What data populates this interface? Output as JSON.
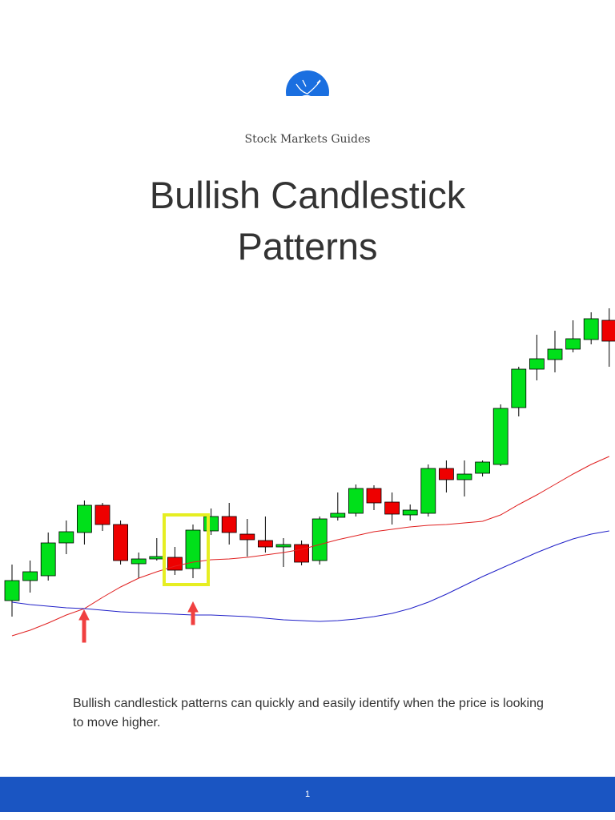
{
  "header": {
    "brand": "Stock Markets Guides",
    "title": "Bullish Candlestick Patterns"
  },
  "chart_data": {
    "type": "candlestick",
    "ylim": [
      0,
      420
    ],
    "up_color": "#00e01a",
    "down_color": "#ee0000",
    "candles": {
      "open": [
        50,
        75,
        81,
        122,
        135,
        169,
        145,
        96,
        102,
        104,
        90,
        137,
        155,
        133,
        125,
        117,
        120,
        100,
        154,
        159,
        190,
        173,
        157,
        159,
        215,
        201,
        209,
        220,
        291,
        339,
        351,
        364,
        376,
        400
      ],
      "high": [
        95,
        100,
        135,
        150,
        175,
        172,
        150,
        110,
        128,
        117,
        145,
        165,
        172,
        152,
        155,
        128,
        125,
        155,
        185,
        195,
        194,
        185,
        170,
        220,
        225,
        225,
        225,
        295,
        342,
        382,
        387,
        400,
        410,
        415
      ],
      "low": [
        30,
        60,
        75,
        108,
        120,
        137,
        95,
        78,
        100,
        82,
        78,
        132,
        120,
        105,
        110,
        92,
        94,
        95,
        150,
        155,
        163,
        145,
        150,
        155,
        185,
        180,
        205,
        218,
        280,
        325,
        335,
        360,
        370,
        342
      ],
      "close": [
        75,
        86,
        122,
        136,
        169,
        145,
        100,
        102,
        105,
        88,
        138,
        155,
        135,
        126,
        117,
        120,
        98,
        152,
        159,
        190,
        172,
        158,
        163,
        215,
        201,
        208,
        223,
        290,
        339,
        352,
        364,
        377,
        402,
        374
      ]
    },
    "series": [
      {
        "color": "#e02020",
        "values": [
          6,
          13,
          22,
          32,
          40,
          54,
          67,
          78,
          86,
          93,
          98,
          101,
          102,
          104,
          107,
          110,
          114,
          120,
          126,
          131,
          136,
          139,
          142,
          144,
          145,
          147,
          149,
          157,
          170,
          182,
          195,
          208,
          220,
          230
        ]
      },
      {
        "color": "#2020c8",
        "values": [
          48,
          45,
          43,
          41,
          40,
          38,
          36,
          35,
          34,
          33,
          32,
          32,
          31,
          30,
          28,
          26,
          25,
          24,
          25,
          27,
          30,
          34,
          40,
          48,
          58,
          69,
          80,
          90,
          100,
          110,
          119,
          127,
          133,
          137
        ]
      }
    ]
  },
  "body": {
    "text": "Bullish candlestick patterns can quickly and easily identify when the price is looking to move higher."
  },
  "footer": {
    "page": "1"
  }
}
